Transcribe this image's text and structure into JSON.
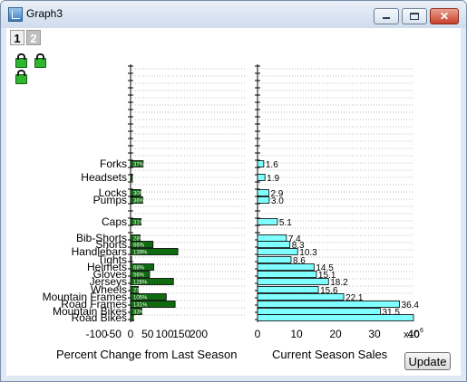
{
  "window": {
    "title": "Graph3"
  },
  "layers": {
    "tabs": [
      "1",
      "2"
    ]
  },
  "update_label": "Update",
  "colors": {
    "percent_bar": "#0f6b0f",
    "sales_bar": "#7fffff",
    "bar_outline": "#000000",
    "grid": "#bdbdbd"
  },
  "chart_data": [
    {
      "type": "bar",
      "orientation": "horizontal",
      "categories": [
        "Forks",
        "Headsets",
        "Locks",
        "Pumps",
        "Caps",
        "Bib-Shorts",
        "Shorts",
        "Handlebars",
        "Tights",
        "Helmets",
        "Gloves",
        "Jerseys",
        "Wheels",
        "Mountain Frames",
        "Road Frames",
        "Mountain Bikes",
        "Road Bikes"
      ],
      "values": [
        37,
        5,
        30,
        36,
        31,
        28,
        66,
        139,
        1,
        68,
        56,
        126,
        23,
        105,
        131,
        33,
        9
      ],
      "data_labels": [
        "37%",
        "",
        "30%",
        "36%",
        "31%",
        "28%",
        "66%",
        "139%",
        "",
        "68%",
        "56%",
        "126%",
        "23%",
        "105%",
        "131%",
        "33%",
        "9%"
      ],
      "xlabel": "Percent Change from Last Season",
      "xlim": [
        -100,
        200
      ],
      "xticks": [
        "-100",
        "-50",
        "0",
        "50",
        "100",
        "150",
        "200"
      ],
      "grid": "horizontal dotted lines",
      "legend": "none"
    },
    {
      "type": "bar",
      "orientation": "horizontal",
      "categories": [
        "Forks",
        "Headsets",
        "Locks",
        "Pumps",
        "Caps",
        "Bib-Shorts",
        "Shorts",
        "Handlebars",
        "Tights",
        "Helmets",
        "Gloves",
        "Jerseys",
        "Wheels",
        "Mountain Frames",
        "Road Frames",
        "Mountain Bikes",
        "Road Bikes"
      ],
      "values": [
        1.6,
        1.9,
        2.9,
        3.0,
        5.1,
        7.4,
        8.3,
        10.3,
        8.6,
        14.5,
        15.1,
        18.2,
        15.6,
        22.1,
        36.4,
        31.5,
        40
      ],
      "data_labels": [
        "1.6",
        "1.9",
        "2.9",
        "3.0",
        "5.1",
        "7.4",
        "8.3",
        "10.3",
        "8.6",
        "14.5",
        "15.1",
        "18.2",
        "15.6",
        "22.1",
        "36.4",
        "31.5",
        ""
      ],
      "xlabel": "Current Season Sales",
      "xlim": [
        0,
        40
      ],
      "xticks": [
        "0",
        "10",
        "20",
        "30",
        "40"
      ],
      "axis_multiplier": "x10",
      "axis_exponent": "6",
      "grid": "horizontal dotted lines",
      "legend": "none"
    }
  ]
}
